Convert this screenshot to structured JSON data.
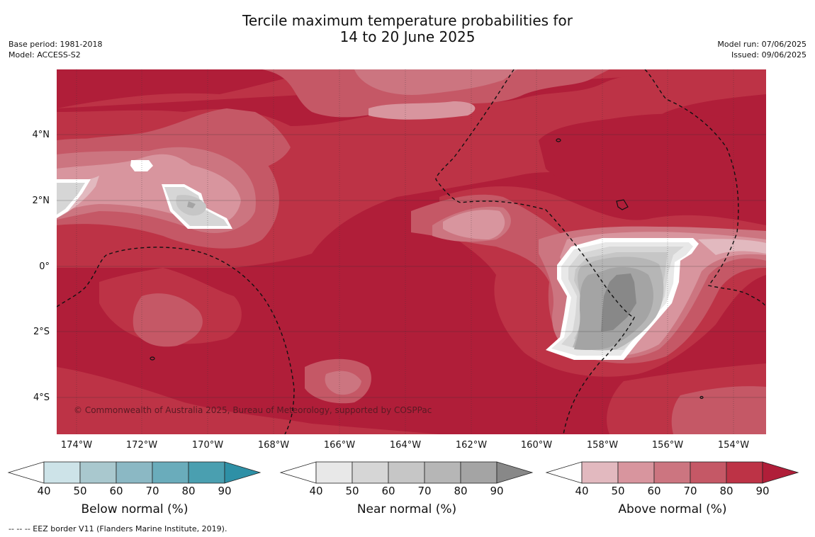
{
  "title_line1": "Tercile maximum temperature probabilities for",
  "title_line2": "14 to 20 June 2025",
  "base_period": "Base period: 1981-2018",
  "model": "Model: ACCESS-S2",
  "model_run": "Model run: 07/06/2025",
  "issued": "Issued: 09/06/2025",
  "lat_labels": [
    "4°N",
    "2°N",
    "0°",
    "2°S",
    "4°S"
  ],
  "lon_labels": [
    "174°W",
    "172°W",
    "170°W",
    "168°W",
    "166°W",
    "164°W",
    "162°W",
    "160°W",
    "158°W",
    "156°W",
    "154°W"
  ],
  "copyright": "© Commonwealth of Australia 2025, Bureau of Meteorology, supported by COSPPac",
  "colorbars": [
    {
      "title": "Below normal (%)",
      "ticks": [
        "40",
        "50",
        "60",
        "70",
        "80",
        "90"
      ],
      "colors": [
        "#cde3e8",
        "#a9c8ce",
        "#8bb8c4",
        "#6aacbb",
        "#4a9fb0",
        "#2e90a6"
      ]
    },
    {
      "title": "Near normal (%)",
      "ticks": [
        "40",
        "50",
        "60",
        "70",
        "80",
        "90"
      ],
      "colors": [
        "#e8e8e8",
        "#d6d6d6",
        "#c6c6c6",
        "#b6b6b6",
        "#a4a4a4",
        "#888888"
      ]
    },
    {
      "title": "Above normal (%)",
      "ticks": [
        "40",
        "50",
        "60",
        "70",
        "80",
        "90"
      ],
      "colors": [
        "#e2b9bf",
        "#d8959e",
        "#cc7580",
        "#c55866",
        "#bd3346",
        "#b01e39"
      ]
    }
  ],
  "footnote": "-- -- -- EEZ border V11 (Flanders Marine Institute, 2019).",
  "colors": {
    "above_80": "#b01e39",
    "above_70": "#bd3346",
    "above_60": "#c55866",
    "above_50": "#cc7580",
    "above_40": "#d8959e"
  }
}
